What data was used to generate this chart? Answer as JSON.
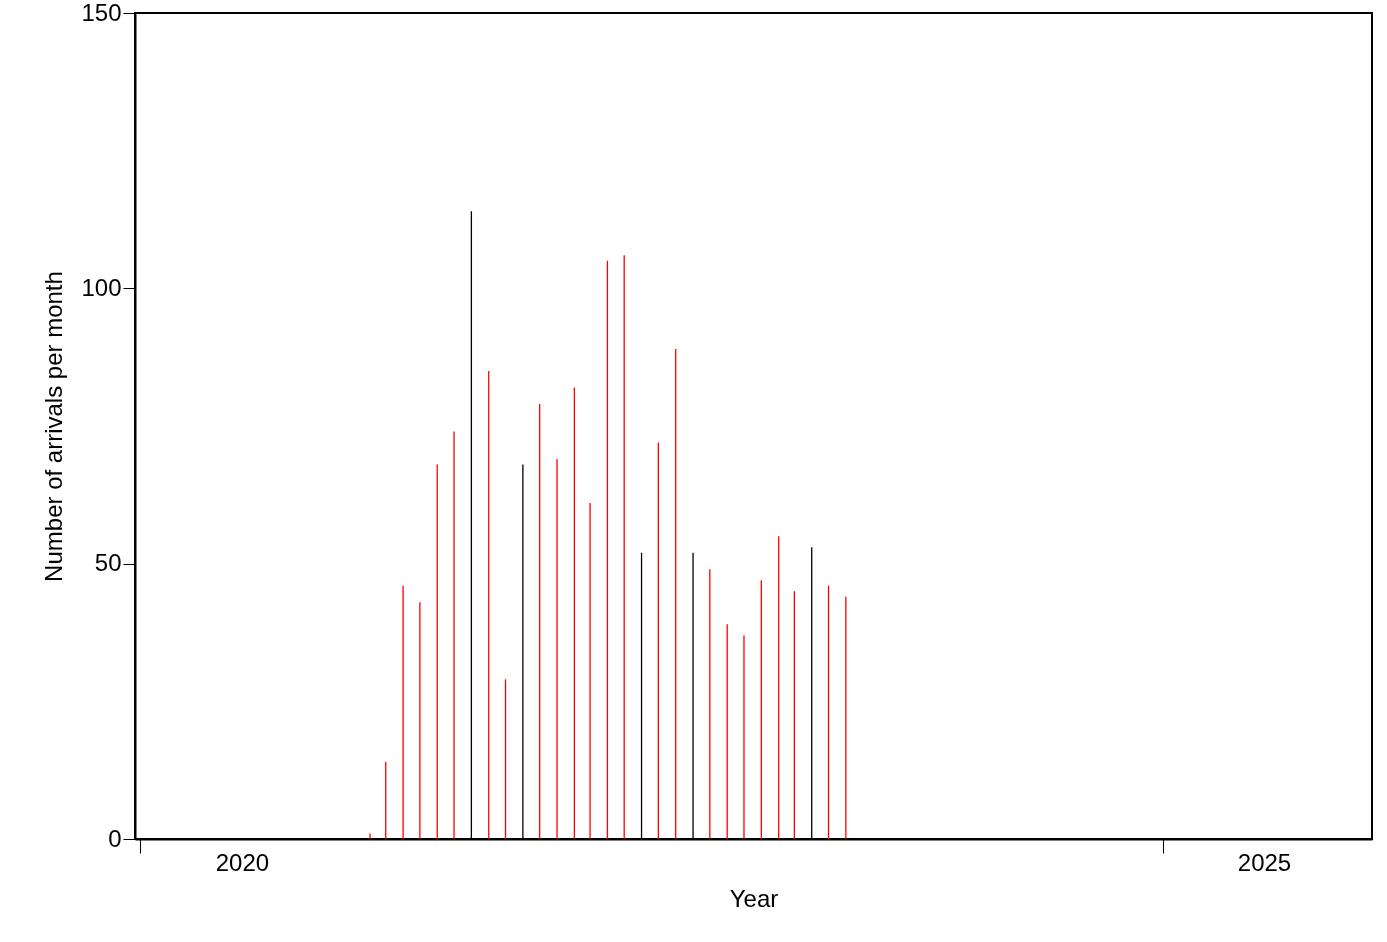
{
  "chart_data": {
    "type": "bar",
    "xlabel": "Year",
    "ylabel": "Number of arrivals per month",
    "x": [
      "2021-02-15",
      "2021-03-15",
      "2021-04-15",
      "2021-05-15",
      "2021-06-15",
      "2021-07-15",
      "2021-08-15",
      "2021-09-15",
      "2021-10-15",
      "2021-11-15",
      "2021-12-15",
      "2022-01-15",
      "2022-02-15",
      "2022-03-15",
      "2022-04-15",
      "2022-05-15",
      "2022-06-15",
      "2022-07-15",
      "2022-08-15",
      "2022-09-15",
      "2022-10-15",
      "2022-11-15",
      "2022-12-15",
      "2023-01-15",
      "2023-02-15",
      "2023-03-15",
      "2023-04-15",
      "2023-05-15",
      "2023-06-15"
    ],
    "values": [
      1,
      14,
      46,
      43,
      68,
      74,
      114,
      85,
      29,
      68,
      79,
      69,
      82,
      61,
      105,
      106,
      52,
      72,
      89,
      52,
      49,
      39,
      37,
      47,
      55,
      45,
      53,
      46,
      44
    ],
    "colors": [
      "#ff0000",
      "#ff0000",
      "#ff0000",
      "#ff0000",
      "#ff0000",
      "#ff0000",
      "#000000",
      "#ff0000",
      "#ff0000",
      "#000000",
      "#ff0000",
      "#ff0000",
      "#ff0000",
      "#ff0000",
      "#ff0000",
      "#ff0000",
      "#000000",
      "#ff0000",
      "#ff0000",
      "#000000",
      "#ff0000",
      "#ff0000",
      "#ff0000",
      "#ff0000",
      "#ff0000",
      "#ff0000",
      "#000000",
      "#ff0000",
      "#ff0000"
    ],
    "xlim": [
      "2020-01-01",
      "2026-01-01"
    ],
    "xticks": [
      {
        "value": "2020-01-01",
        "label": null
      },
      {
        "value": "2020-07-01",
        "label": "2020"
      },
      {
        "value": "2025-01-01",
        "label": null
      },
      {
        "value": "2025-07-01",
        "label": "2025"
      }
    ],
    "ylim": [
      0,
      150
    ],
    "yticks": [
      0,
      50,
      100,
      150
    ],
    "grid": false
  }
}
